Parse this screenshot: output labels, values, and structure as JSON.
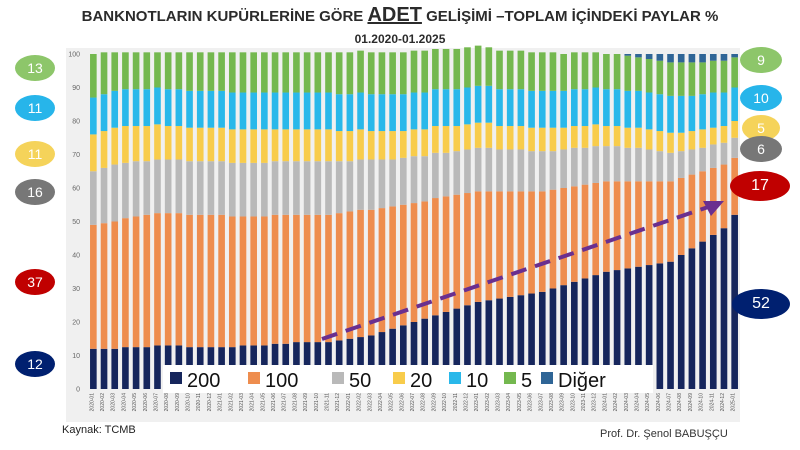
{
  "title": {
    "before": "BANKNOTLARIN KUPÜRLERİNE GÖRE",
    "highlight": "ADET",
    "after": "GELİŞİMİ –TOPLAM İÇİNDEKİ PAYLAR %"
  },
  "subtitle": "01.2020-01.2025",
  "source": "Kaynak: TCMB",
  "author": "Prof. Dr. Şenol BABUŞÇU",
  "left_callouts": [
    {
      "text": "13",
      "color": "#8dc66a"
    },
    {
      "text": "11",
      "color": "#27b5ea"
    },
    {
      "text": "11",
      "color": "#f5d35a"
    },
    {
      "text": "16",
      "color": "#777777"
    },
    {
      "text": "37",
      "color": "#c00000"
    },
    {
      "text": "12",
      "color": "#002070"
    }
  ],
  "right_callouts": [
    {
      "text": "9",
      "color": "#8dc66a"
    },
    {
      "text": "10",
      "color": "#27b5ea"
    },
    {
      "text": "5",
      "color": "#f5d35a"
    },
    {
      "text": "6",
      "color": "#777777"
    },
    {
      "text": "17",
      "color": "#c00000"
    },
    {
      "text": "52",
      "color": "#002070"
    }
  ],
  "chart_data": {
    "type": "bar",
    "stacked": true,
    "ylim": [
      0,
      100
    ],
    "yticks": [
      0,
      10,
      20,
      30,
      40,
      50,
      60,
      70,
      80,
      90,
      100
    ],
    "xstart": "2020-01",
    "months": 61,
    "colors": {
      "200": "#16265c",
      "100": "#ee8d4e",
      "50": "#b9b9b9",
      "20": "#f8cc4b",
      "10": "#29b8ea",
      "5": "#74b84f",
      "Diğer": "#2f6596"
    },
    "legend": [
      "200",
      "100",
      "50",
      "20",
      "10",
      "5",
      "Diğer"
    ],
    "series": [
      {
        "name": "200",
        "values": [
          12,
          12,
          12,
          12.5,
          12.5,
          12.5,
          13,
          13,
          13,
          12.5,
          12.5,
          12.5,
          12.5,
          12.5,
          13,
          13,
          13,
          13.5,
          13.5,
          14,
          14,
          14,
          14,
          14.5,
          15,
          15.5,
          16,
          17,
          18,
          19,
          20,
          21,
          22,
          23,
          24,
          25,
          26,
          26.5,
          27,
          27.5,
          28,
          28.5,
          29,
          30,
          31,
          32,
          33,
          34,
          35,
          35.5,
          36,
          36.5,
          37,
          37.5,
          38,
          40,
          42,
          44,
          46,
          48,
          52
        ]
      },
      {
        "name": "100",
        "values": [
          37,
          37.5,
          38,
          38.5,
          39,
          39.5,
          39.5,
          39.5,
          39.5,
          39.5,
          39.5,
          39.5,
          39.5,
          39,
          38.5,
          38.5,
          38.5,
          38.5,
          38.5,
          38,
          38,
          38,
          38,
          38,
          38,
          38,
          37.5,
          37,
          36.5,
          36,
          35.5,
          35,
          35,
          34.5,
          34,
          33.5,
          33,
          32.5,
          32,
          31.5,
          31,
          30.5,
          30,
          29.5,
          29,
          28.5,
          28,
          27.5,
          27,
          26.5,
          26,
          25.5,
          25,
          24.5,
          24,
          23,
          22,
          21,
          20,
          19,
          17
        ]
      },
      {
        "name": "50",
        "values": [
          16,
          16.5,
          17,
          16.5,
          16.5,
          16,
          16,
          16,
          16,
          16,
          16,
          16,
          16,
          16,
          16,
          16,
          16,
          16,
          16,
          16,
          16,
          16,
          16,
          15.5,
          15,
          15,
          15,
          14.5,
          14,
          14,
          14,
          13.5,
          13.5,
          13,
          13,
          13,
          13,
          13,
          12.5,
          12.5,
          12.5,
          12,
          12,
          11.5,
          11.5,
          11.5,
          11,
          11,
          10.5,
          10.5,
          10,
          10,
          9.5,
          9,
          8.5,
          8,
          7.5,
          7,
          7,
          6.5,
          6
        ]
      },
      {
        "name": "20",
        "values": [
          11,
          11,
          11,
          11,
          10.5,
          10.5,
          10.5,
          10,
          10,
          10,
          10,
          10,
          10,
          10,
          10,
          10,
          10,
          9.5,
          9.5,
          9.5,
          9.5,
          9.5,
          9.5,
          9,
          9,
          9,
          8.5,
          8.5,
          8.5,
          8,
          8,
          8,
          8,
          8,
          7.5,
          7.5,
          7.5,
          7.5,
          7,
          7,
          7,
          7,
          7,
          7,
          6.5,
          6.5,
          6.5,
          6.5,
          6,
          6,
          6,
          6,
          6,
          6,
          6,
          5.5,
          5.5,
          5.5,
          5,
          5,
          5
        ]
      },
      {
        "name": "10",
        "values": [
          11,
          11,
          11,
          11,
          11,
          11,
          11,
          11,
          11,
          11,
          11,
          11,
          11,
          11,
          11,
          11,
          11,
          11,
          11,
          11,
          11,
          11,
          11,
          11,
          11,
          11,
          11,
          11,
          11,
          11,
          11,
          11,
          11,
          11,
          11,
          11,
          11,
          11,
          11,
          11,
          11,
          11,
          11,
          11,
          11,
          11,
          11,
          11,
          11,
          11,
          11,
          11,
          11,
          11,
          11,
          11,
          10.5,
          10.5,
          10.5,
          10,
          10
        ]
      },
      {
        "name": "5",
        "values": [
          13,
          12.5,
          11.5,
          11,
          11,
          11,
          10.5,
          11,
          11,
          11.5,
          11.5,
          11.5,
          11.5,
          12,
          12,
          12,
          12,
          12,
          12,
          12,
          12,
          12,
          12,
          12.5,
          12.5,
          12.5,
          12.5,
          12.5,
          12.5,
          12.5,
          12.5,
          12.5,
          12,
          12,
          12,
          12,
          12,
          11.5,
          11.5,
          11.5,
          11.5,
          11.5,
          11.5,
          11.5,
          11,
          11,
          11,
          10.5,
          10.5,
          10.5,
          10.5,
          10,
          10,
          10,
          10,
          10,
          10,
          9.5,
          9.5,
          9.5,
          9
        ]
      }
    ]
  }
}
